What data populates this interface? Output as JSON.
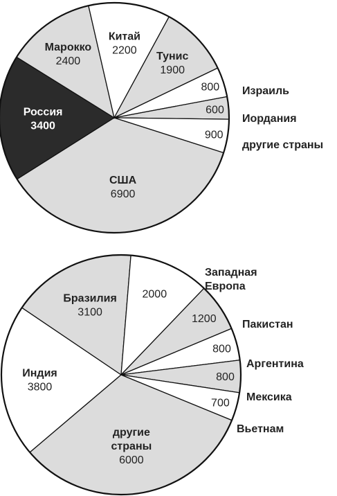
{
  "chart_data": [
    {
      "type": "pie",
      "slices": [
        {
          "label": "США",
          "value": 6900,
          "color": "#dcdcdc"
        },
        {
          "label": "Россия",
          "value": 3400,
          "color": "#2b2b2b"
        },
        {
          "label": "Марокко",
          "value": 2400,
          "color": "#dcdcdc"
        },
        {
          "label": "Китай",
          "value": 2200,
          "color": "#ffffff"
        },
        {
          "label": "Тунис",
          "value": 1900,
          "color": "#dcdcdc"
        },
        {
          "label": "Израиль",
          "value": 800,
          "color": "#ffffff"
        },
        {
          "label": "Иордания",
          "value": 600,
          "color": "#dcdcdc"
        },
        {
          "label": "другие страны",
          "value": 900,
          "color": "#ffffff"
        }
      ]
    },
    {
      "type": "pie",
      "slices": [
        {
          "label": "другие страны",
          "value": 6000,
          "color": "#dcdcdc"
        },
        {
          "label": "Индия",
          "value": 3800,
          "color": "#ffffff"
        },
        {
          "label": "Бразилия",
          "value": 3100,
          "color": "#dcdcdc"
        },
        {
          "label": "Западная Европа",
          "value": 2000,
          "color": "#ffffff"
        },
        {
          "label": "Пакистан",
          "value": 1200,
          "color": "#dcdcdc"
        },
        {
          "label": "Аргентина",
          "value": 800,
          "color": "#ffffff"
        },
        {
          "label": "Мексика",
          "value": 800,
          "color": "#dcdcdc"
        },
        {
          "label": "Вьетнам",
          "value": 700,
          "color": "#ffffff"
        }
      ]
    }
  ]
}
